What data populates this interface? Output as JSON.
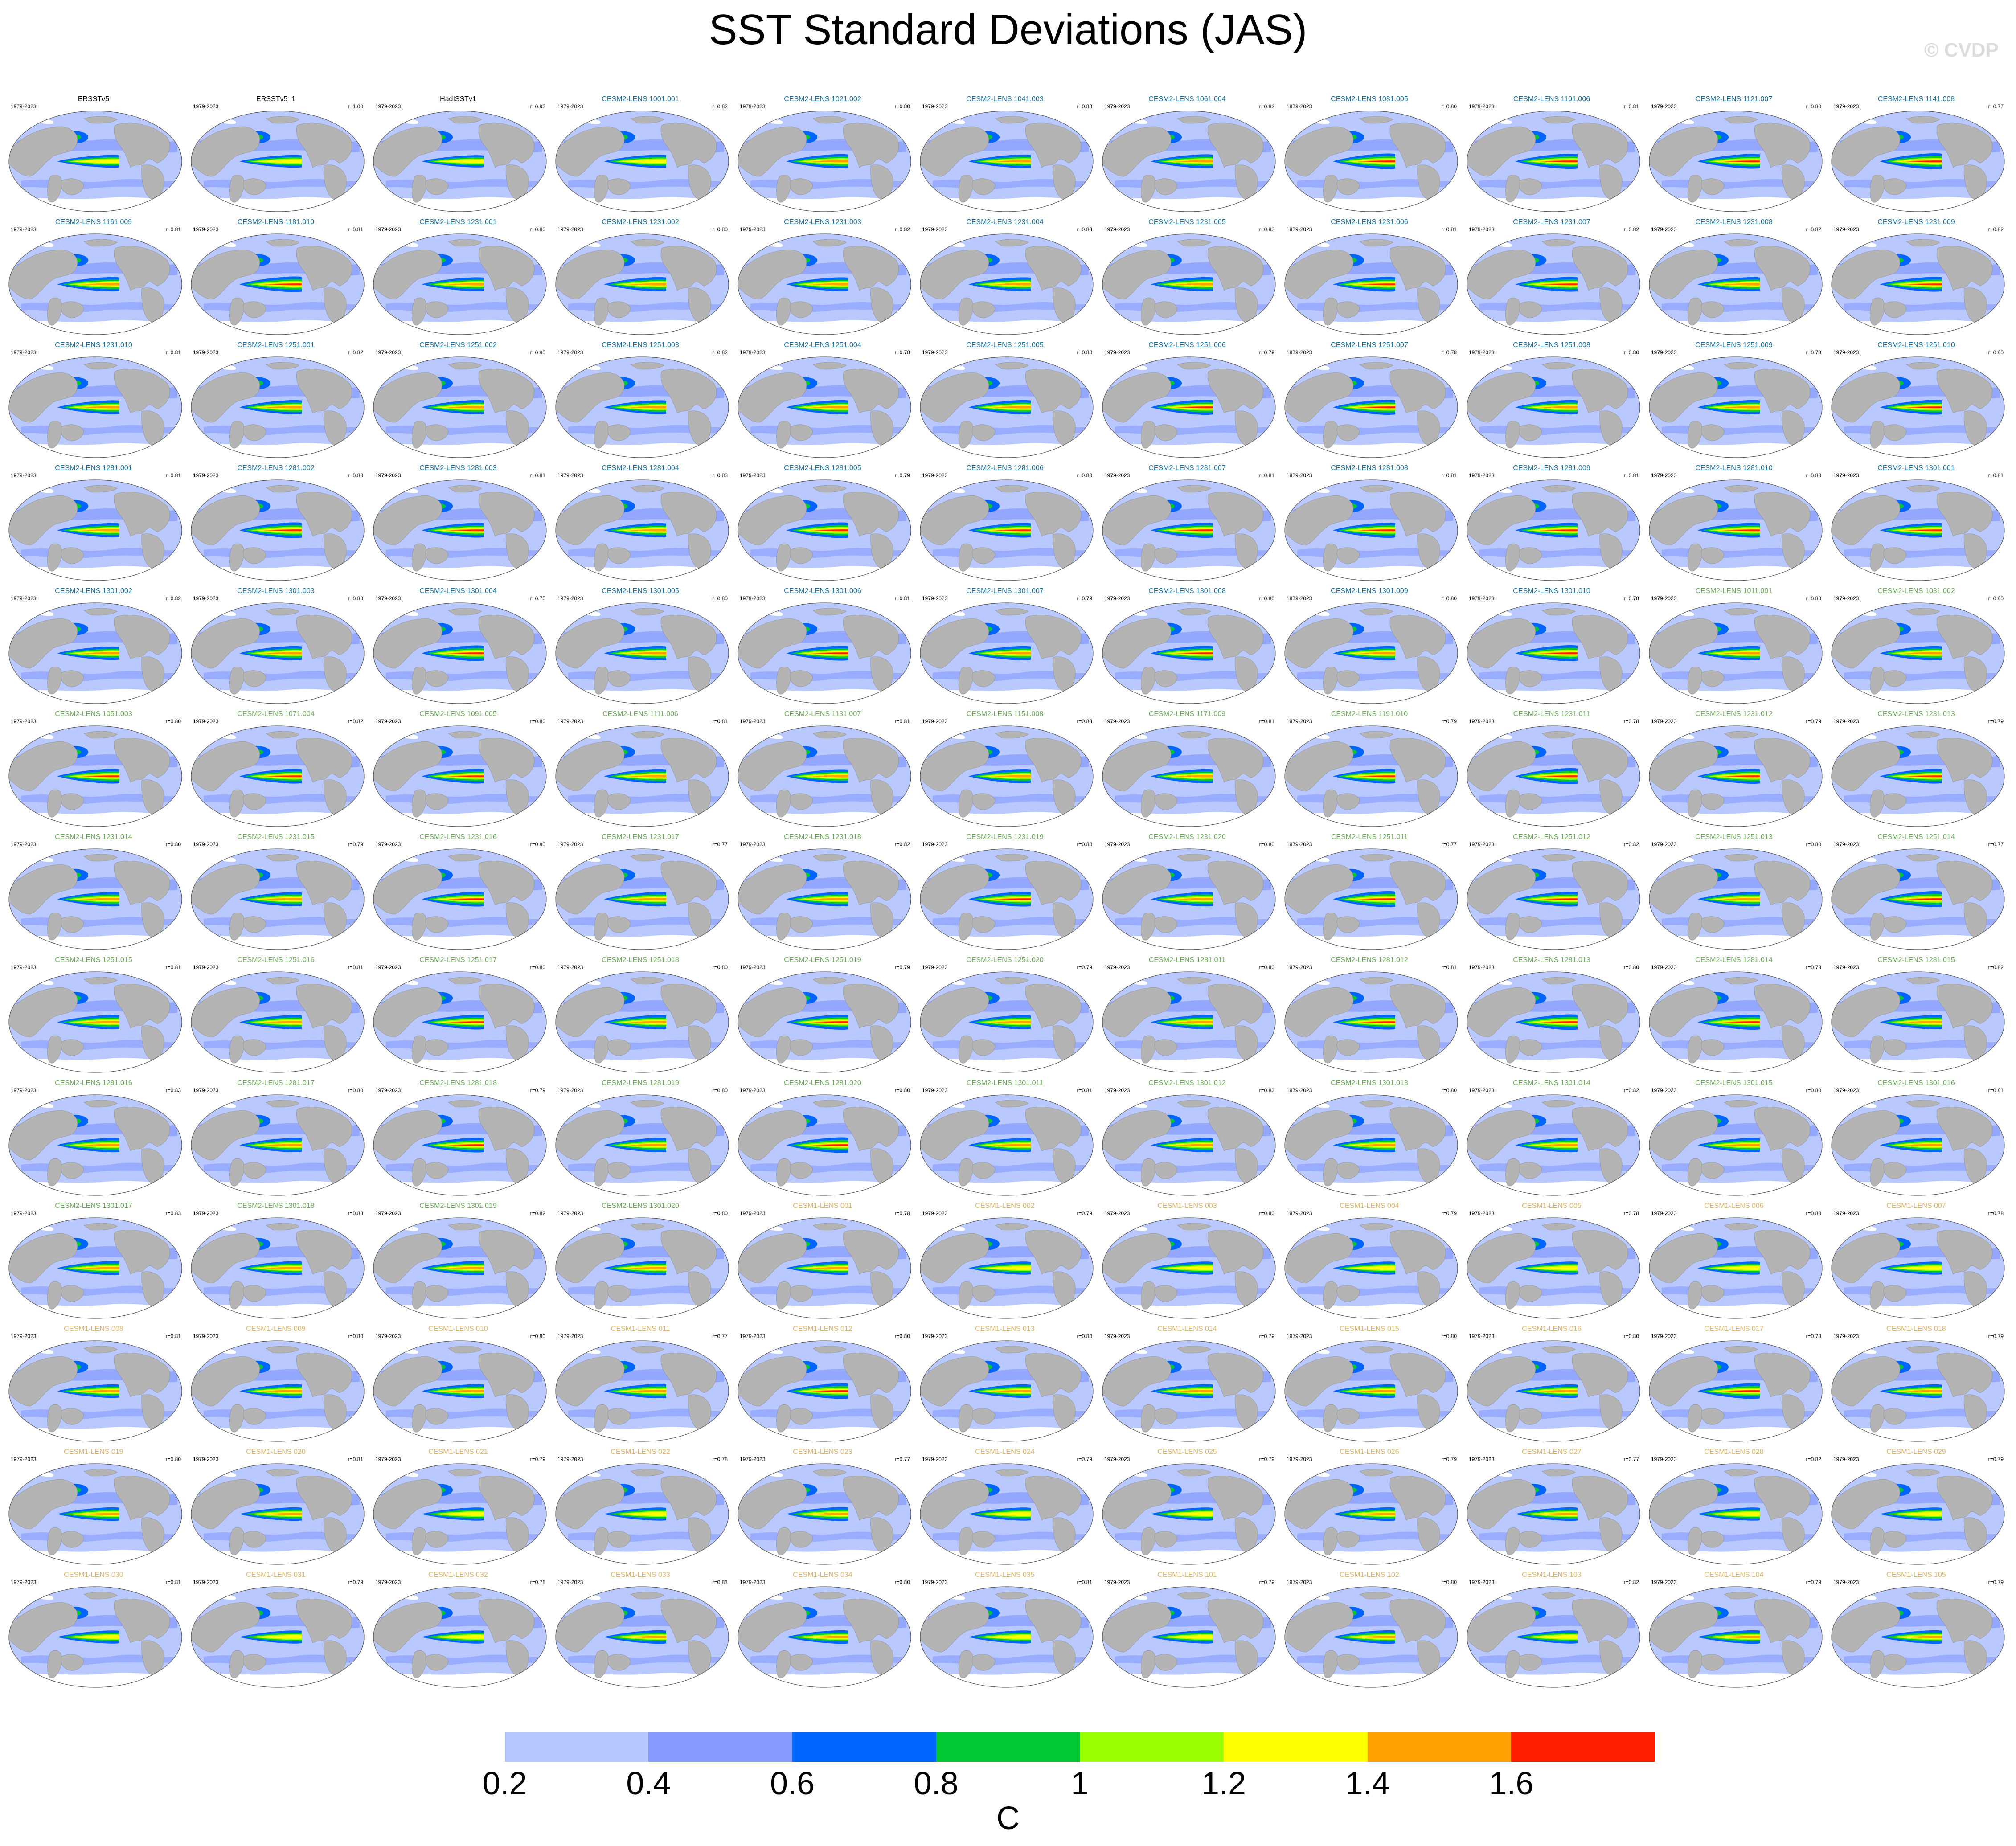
{
  "title": "SST Standard Deviations (JAS)",
  "watermark": "© CVDP",
  "panel_years": "1979-2023",
  "panels": [
    {
      "name": "ERSSTv5",
      "r": "",
      "amp": 0.55,
      "group": "obs"
    },
    {
      "name": "ERSSTv5_1",
      "r": "r=1.00",
      "amp": 0.55,
      "group": "obs"
    },
    {
      "name": "HadISSTv1",
      "r": "r=0.93",
      "amp": 0.5,
      "group": "obs"
    },
    {
      "name": "CESM2-LENS 1001.001",
      "r": "r=0.82",
      "amp": 0.6,
      "group": "cesm2"
    },
    {
      "name": "CESM2-LENS 1021.002",
      "r": "r=0.80",
      "amp": 0.75,
      "group": "cesm2"
    },
    {
      "name": "CESM2-LENS 1041.003",
      "r": "r=0.83",
      "amp": 0.65,
      "group": "cesm2"
    },
    {
      "name": "CESM2-LENS 1061.004",
      "r": "r=0.82",
      "amp": 0.7,
      "group": "cesm2"
    },
    {
      "name": "CESM2-LENS 1081.005",
      "r": "r=0.80",
      "amp": 0.9,
      "group": "cesm2"
    },
    {
      "name": "CESM2-LENS 1101.006",
      "r": "r=0.81",
      "amp": 0.85,
      "group": "cesm2"
    },
    {
      "name": "CESM2-LENS 1121.007",
      "r": "r=0.80",
      "amp": 0.8,
      "group": "cesm2"
    },
    {
      "name": "CESM2-LENS 1141.008",
      "r": "r=0.77",
      "amp": 0.95,
      "group": "cesm2"
    },
    {
      "name": "CESM2-LENS 1161.009",
      "r": "r=0.81",
      "amp": 0.75,
      "group": "cesm2"
    },
    {
      "name": "CESM2-LENS 1181.010",
      "r": "r=0.81",
      "amp": 0.9,
      "group": "cesm2"
    },
    {
      "name": "CESM2-LENS 1231.001",
      "r": "r=0.80",
      "amp": 0.7,
      "group": "cesm2"
    },
    {
      "name": "CESM2-LENS 1231.002",
      "r": "r=0.80",
      "amp": 0.75,
      "group": "cesm2"
    },
    {
      "name": "CESM2-LENS 1231.003",
      "r": "r=0.82",
      "amp": 0.7,
      "group": "cesm2"
    },
    {
      "name": "CESM2-LENS 1231.004",
      "r": "r=0.83",
      "amp": 0.7,
      "group": "cesm2"
    },
    {
      "name": "CESM2-LENS 1231.005",
      "r": "r=0.83",
      "amp": 0.75,
      "group": "cesm2"
    },
    {
      "name": "CESM2-LENS 1231.006",
      "r": "r=0.81",
      "amp": 0.8,
      "group": "cesm2"
    },
    {
      "name": "CESM2-LENS 1231.007",
      "r": "r=0.82",
      "amp": 0.8,
      "group": "cesm2"
    },
    {
      "name": "CESM2-LENS 1231.008",
      "r": "r=0.82",
      "amp": 0.75,
      "group": "cesm2"
    },
    {
      "name": "CESM2-LENS 1231.009",
      "r": "r=0.82",
      "amp": 0.8,
      "group": "cesm2"
    },
    {
      "name": "CESM2-LENS 1231.010",
      "r": "r=0.81",
      "amp": 0.7,
      "group": "cesm2"
    },
    {
      "name": "CESM2-LENS 1251.001",
      "r": "r=0.82",
      "amp": 0.75,
      "group": "cesm2"
    },
    {
      "name": "CESM2-LENS 1251.002",
      "r": "r=0.80",
      "amp": 0.75,
      "group": "cesm2"
    },
    {
      "name": "CESM2-LENS 1251.003",
      "r": "r=0.82",
      "amp": 0.7,
      "group": "cesm2"
    },
    {
      "name": "CESM2-LENS 1251.004",
      "r": "r=0.78",
      "amp": 0.75,
      "group": "cesm2"
    },
    {
      "name": "CESM2-LENS 1251.005",
      "r": "r=0.80",
      "amp": 0.75,
      "group": "cesm2"
    },
    {
      "name": "CESM2-LENS 1251.006",
      "r": "r=0.79",
      "amp": 0.85,
      "group": "cesm2"
    },
    {
      "name": "CESM2-LENS 1251.007",
      "r": "r=0.78",
      "amp": 0.85,
      "group": "cesm2"
    },
    {
      "name": "CESM2-LENS 1251.008",
      "r": "r=0.80",
      "amp": 0.75,
      "group": "cesm2"
    },
    {
      "name": "CESM2-LENS 1251.009",
      "r": "r=0.78",
      "amp": 0.75,
      "group": "cesm2"
    },
    {
      "name": "CESM2-LENS 1251.010",
      "r": "r=0.80",
      "amp": 0.8,
      "group": "cesm2"
    },
    {
      "name": "CESM2-LENS 1281.001",
      "r": "r=0.81",
      "amp": 0.75,
      "group": "cesm2"
    },
    {
      "name": "CESM2-LENS 1281.002",
      "r": "r=0.80",
      "amp": 0.9,
      "group": "cesm2"
    },
    {
      "name": "CESM2-LENS 1281.003",
      "r": "r=0.81",
      "amp": 0.8,
      "group": "cesm2"
    },
    {
      "name": "CESM2-LENS 1281.004",
      "r": "r=0.83",
      "amp": 0.75,
      "group": "cesm2"
    },
    {
      "name": "CESM2-LENS 1281.005",
      "r": "r=0.79",
      "amp": 0.9,
      "group": "cesm2"
    },
    {
      "name": "CESM2-LENS 1281.006",
      "r": "r=0.80",
      "amp": 0.8,
      "group": "cesm2"
    },
    {
      "name": "CESM2-LENS 1281.007",
      "r": "r=0.81",
      "amp": 0.85,
      "group": "cesm2"
    },
    {
      "name": "CESM2-LENS 1281.008",
      "r": "r=0.81",
      "amp": 0.85,
      "group": "cesm2"
    },
    {
      "name": "CESM2-LENS 1281.009",
      "r": "r=0.81",
      "amp": 0.8,
      "group": "cesm2"
    },
    {
      "name": "CESM2-LENS 1281.010",
      "r": "r=0.80",
      "amp": 0.8,
      "group": "cesm2"
    },
    {
      "name": "CESM2-LENS 1301.001",
      "r": "r=0.81",
      "amp": 0.8,
      "group": "cesm2"
    },
    {
      "name": "CESM2-LENS 1301.002",
      "r": "r=0.82",
      "amp": 0.65,
      "group": "cesm2"
    },
    {
      "name": "CESM2-LENS 1301.003",
      "r": "r=0.83",
      "amp": 0.75,
      "group": "cesm2"
    },
    {
      "name": "CESM2-LENS 1301.004",
      "r": "r=0.75",
      "amp": 0.9,
      "group": "cesm2"
    },
    {
      "name": "CESM2-LENS 1301.005",
      "r": "r=0.80",
      "amp": 0.75,
      "group": "cesm2"
    },
    {
      "name": "CESM2-LENS 1301.006",
      "r": "r=0.81",
      "amp": 0.8,
      "group": "cesm2"
    },
    {
      "name": "CESM2-LENS 1301.007",
      "r": "r=0.79",
      "amp": 0.75,
      "group": "cesm2"
    },
    {
      "name": "CESM2-LENS 1301.008",
      "r": "r=0.80",
      "amp": 0.8,
      "group": "cesm2"
    },
    {
      "name": "CESM2-LENS 1301.009",
      "r": "r=0.80",
      "amp": 0.75,
      "group": "cesm2"
    },
    {
      "name": "CESM2-LENS 1301.010",
      "r": "r=0.78",
      "amp": 0.95,
      "group": "cesm2"
    },
    {
      "name": "CESM2-LENS 1011.001",
      "r": "r=0.83",
      "amp": 0.75,
      "group": "cesm2b"
    },
    {
      "name": "CESM2-LENS 1031.002",
      "r": "r=0.80",
      "amp": 0.75,
      "group": "cesm2b"
    },
    {
      "name": "CESM2-LENS 1051.003",
      "r": "r=0.80",
      "amp": 0.8,
      "group": "cesm2b"
    },
    {
      "name": "CESM2-LENS 1071.004",
      "r": "r=0.82",
      "amp": 0.8,
      "group": "cesm2b"
    },
    {
      "name": "CESM2-LENS 1091.005",
      "r": "r=0.80",
      "amp": 0.8,
      "group": "cesm2b"
    },
    {
      "name": "CESM2-LENS 1111.006",
      "r": "r=0.81",
      "amp": 0.75,
      "group": "cesm2b"
    },
    {
      "name": "CESM2-LENS 1131.007",
      "r": "r=0.81",
      "amp": 0.7,
      "group": "cesm2b"
    },
    {
      "name": "CESM2-LENS 1151.008",
      "r": "r=0.83",
      "amp": 0.75,
      "group": "cesm2b"
    },
    {
      "name": "CESM2-LENS 1171.009",
      "r": "r=0.81",
      "amp": 0.75,
      "group": "cesm2b"
    },
    {
      "name": "CESM2-LENS 1191.010",
      "r": "r=0.79",
      "amp": 0.8,
      "group": "cesm2b"
    },
    {
      "name": "CESM2-LENS 1231.011",
      "r": "r=0.78",
      "amp": 0.95,
      "group": "cesm2b"
    },
    {
      "name": "CESM2-LENS 1231.012",
      "r": "r=0.79",
      "amp": 0.85,
      "group": "cesm2b"
    },
    {
      "name": "CESM2-LENS 1231.013",
      "r": "r=0.79",
      "amp": 0.8,
      "group": "cesm2b"
    },
    {
      "name": "CESM2-LENS 1231.014",
      "r": "r=0.80",
      "amp": 0.75,
      "group": "cesm2b"
    },
    {
      "name": "CESM2-LENS 1231.015",
      "r": "r=0.79",
      "amp": 0.75,
      "group": "cesm2b"
    },
    {
      "name": "CESM2-LENS 1231.016",
      "r": "r=0.80",
      "amp": 0.8,
      "group": "cesm2b"
    },
    {
      "name": "CESM2-LENS 1231.017",
      "r": "r=0.77",
      "amp": 0.75,
      "group": "cesm2b"
    },
    {
      "name": "CESM2-LENS 1231.018",
      "r": "r=0.82",
      "amp": 0.75,
      "group": "cesm2b"
    },
    {
      "name": "CESM2-LENS 1231.019",
      "r": "r=0.80",
      "amp": 0.8,
      "group": "cesm2b"
    },
    {
      "name": "CESM2-LENS 1231.020",
      "r": "r=0.80",
      "amp": 0.75,
      "group": "cesm2b"
    },
    {
      "name": "CESM2-LENS 1251.011",
      "r": "r=0.77",
      "amp": 0.95,
      "group": "cesm2b"
    },
    {
      "name": "CESM2-LENS 1251.012",
      "r": "r=0.82",
      "amp": 0.8,
      "group": "cesm2b"
    },
    {
      "name": "CESM2-LENS 1251.013",
      "r": "r=0.80",
      "amp": 0.75,
      "group": "cesm2b"
    },
    {
      "name": "CESM2-LENS 1251.014",
      "r": "r=0.77",
      "amp": 0.95,
      "group": "cesm2b"
    },
    {
      "name": "CESM2-LENS 1251.015",
      "r": "r=0.81",
      "amp": 0.75,
      "group": "cesm2b"
    },
    {
      "name": "CESM2-LENS 1251.016",
      "r": "r=0.81",
      "amp": 0.75,
      "group": "cesm2b"
    },
    {
      "name": "CESM2-LENS 1251.017",
      "r": "r=0.80",
      "amp": 0.8,
      "group": "cesm2b"
    },
    {
      "name": "CESM2-LENS 1251.018",
      "r": "r=0.80",
      "amp": 0.75,
      "group": "cesm2b"
    },
    {
      "name": "CESM2-LENS 1251.019",
      "r": "r=0.79",
      "amp": 0.85,
      "group": "cesm2b"
    },
    {
      "name": "CESM2-LENS 1251.020",
      "r": "r=0.79",
      "amp": 0.75,
      "group": "cesm2b"
    },
    {
      "name": "CESM2-LENS 1281.011",
      "r": "r=0.80",
      "amp": 0.75,
      "group": "cesm2b"
    },
    {
      "name": "CESM2-LENS 1281.012",
      "r": "r=0.81",
      "amp": 0.8,
      "group": "cesm2b"
    },
    {
      "name": "CESM2-LENS 1281.013",
      "r": "r=0.80",
      "amp": 0.9,
      "group": "cesm2b"
    },
    {
      "name": "CESM2-LENS 1281.014",
      "r": "r=0.78",
      "amp": 0.85,
      "group": "cesm2b"
    },
    {
      "name": "CESM2-LENS 1281.015",
      "r": "r=0.82",
      "amp": 0.75,
      "group": "cesm2b"
    },
    {
      "name": "CESM2-LENS 1281.016",
      "r": "r=0.83",
      "amp": 0.75,
      "group": "cesm2b"
    },
    {
      "name": "CESM2-LENS 1281.017",
      "r": "r=0.80",
      "amp": 0.75,
      "group": "cesm2b"
    },
    {
      "name": "CESM2-LENS 1281.018",
      "r": "r=0.79",
      "amp": 0.8,
      "group": "cesm2b"
    },
    {
      "name": "CESM2-LENS 1281.019",
      "r": "r=0.80",
      "amp": 0.75,
      "group": "cesm2b"
    },
    {
      "name": "CESM2-LENS 1281.020",
      "r": "r=0.80",
      "amp": 0.9,
      "group": "cesm2b"
    },
    {
      "name": "CESM2-LENS 1301.011",
      "r": "r=0.81",
      "amp": 0.75,
      "group": "cesm2b"
    },
    {
      "name": "CESM2-LENS 1301.012",
      "r": "r=0.83",
      "amp": 0.75,
      "group": "cesm2b"
    },
    {
      "name": "CESM2-LENS 1301.013",
      "r": "r=0.80",
      "amp": 0.75,
      "group": "cesm2b"
    },
    {
      "name": "CESM2-LENS 1301.014",
      "r": "r=0.82",
      "amp": 0.75,
      "group": "cesm2b"
    },
    {
      "name": "CESM2-LENS 1301.015",
      "r": "r=0.80",
      "amp": 0.75,
      "group": "cesm2b"
    },
    {
      "name": "CESM2-LENS 1301.016",
      "r": "r=0.81",
      "amp": 0.75,
      "group": "cesm2b"
    },
    {
      "name": "CESM2-LENS 1301.017",
      "r": "r=0.83",
      "amp": 0.7,
      "group": "cesm2b"
    },
    {
      "name": "CESM2-LENS 1301.018",
      "r": "r=0.83",
      "amp": 0.7,
      "group": "cesm2b"
    },
    {
      "name": "CESM2-LENS 1301.019",
      "r": "r=0.82",
      "amp": 0.75,
      "group": "cesm2b"
    },
    {
      "name": "CESM2-LENS 1301.020",
      "r": "r=0.80",
      "amp": 0.75,
      "group": "cesm2b"
    },
    {
      "name": "CESM1-LENS 001",
      "r": "r=0.78",
      "amp": 0.65,
      "group": "cesm1"
    },
    {
      "name": "CESM1-LENS 002",
      "r": "r=0.79",
      "amp": 0.6,
      "group": "cesm1"
    },
    {
      "name": "CESM1-LENS 003",
      "r": "r=0.80",
      "amp": 0.6,
      "group": "cesm1"
    },
    {
      "name": "CESM1-LENS 004",
      "r": "r=0.79",
      "amp": 0.6,
      "group": "cesm1"
    },
    {
      "name": "CESM1-LENS 005",
      "r": "r=0.78",
      "amp": 0.6,
      "group": "cesm1"
    },
    {
      "name": "CESM1-LENS 006",
      "r": "r=0.80",
      "amp": 0.6,
      "group": "cesm1"
    },
    {
      "name": "CESM1-LENS 007",
      "r": "r=0.78",
      "amp": 0.6,
      "group": "cesm1"
    },
    {
      "name": "CESM1-LENS 008",
      "r": "r=0.81",
      "amp": 0.65,
      "group": "cesm1"
    },
    {
      "name": "CESM1-LENS 009",
      "r": "r=0.80",
      "amp": 0.7,
      "group": "cesm1"
    },
    {
      "name": "CESM1-LENS 010",
      "r": "r=0.80",
      "amp": 0.7,
      "group": "cesm1"
    },
    {
      "name": "CESM1-LENS 011",
      "r": "r=0.77",
      "amp": 0.75,
      "group": "cesm1"
    },
    {
      "name": "CESM1-LENS 012",
      "r": "r=0.80",
      "amp": 0.9,
      "group": "cesm1"
    },
    {
      "name": "CESM1-LENS 013",
      "r": "r=0.80",
      "amp": 0.65,
      "group": "cesm1"
    },
    {
      "name": "CESM1-LENS 014",
      "r": "r=0.79",
      "amp": 0.7,
      "group": "cesm1"
    },
    {
      "name": "CESM1-LENS 015",
      "r": "r=0.80",
      "amp": 0.65,
      "group": "cesm1"
    },
    {
      "name": "CESM1-LENS 016",
      "r": "r=0.80",
      "amp": 0.65,
      "group": "cesm1"
    },
    {
      "name": "CESM1-LENS 017",
      "r": "r=0.78",
      "amp": 0.9,
      "group": "cesm1"
    },
    {
      "name": "CESM1-LENS 018",
      "r": "r=0.79",
      "amp": 0.65,
      "group": "cesm1"
    },
    {
      "name": "CESM1-LENS 019",
      "r": "r=0.80",
      "amp": 0.65,
      "group": "cesm1"
    },
    {
      "name": "CESM1-LENS 020",
      "r": "r=0.81",
      "amp": 0.65,
      "group": "cesm1"
    },
    {
      "name": "CESM1-LENS 021",
      "r": "r=0.79",
      "amp": 0.6,
      "group": "cesm1"
    },
    {
      "name": "CESM1-LENS 022",
      "r": "r=0.78",
      "amp": 0.6,
      "group": "cesm1"
    },
    {
      "name": "CESM1-LENS 023",
      "r": "r=0.77",
      "amp": 0.7,
      "group": "cesm1"
    },
    {
      "name": "CESM1-LENS 024",
      "r": "r=0.79",
      "amp": 0.6,
      "group": "cesm1"
    },
    {
      "name": "CESM1-LENS 025",
      "r": "r=0.79",
      "amp": 0.6,
      "group": "cesm1"
    },
    {
      "name": "CESM1-LENS 026",
      "r": "r=0.79",
      "amp": 0.65,
      "group": "cesm1"
    },
    {
      "name": "CESM1-LENS 027",
      "r": "r=0.77",
      "amp": 0.65,
      "group": "cesm1"
    },
    {
      "name": "CESM1-LENS 028",
      "r": "r=0.82",
      "amp": 0.6,
      "group": "cesm1"
    },
    {
      "name": "CESM1-LENS 029",
      "r": "r=0.79",
      "amp": 0.6,
      "group": "cesm1"
    },
    {
      "name": "CESM1-LENS 030",
      "r": "r=0.81",
      "amp": 0.6,
      "group": "cesm1"
    },
    {
      "name": "CESM1-LENS 031",
      "r": "r=0.79",
      "amp": 0.6,
      "group": "cesm1"
    },
    {
      "name": "CESM1-LENS 032",
      "r": "r=0.78",
      "amp": 0.6,
      "group": "cesm1"
    },
    {
      "name": "CESM1-LENS 033",
      "r": "r=0.81",
      "amp": 0.65,
      "group": "cesm1"
    },
    {
      "name": "CESM1-LENS 034",
      "r": "r=0.80",
      "amp": 0.65,
      "group": "cesm1"
    },
    {
      "name": "CESM1-LENS 035",
      "r": "r=0.81",
      "amp": 0.6,
      "group": "cesm1"
    },
    {
      "name": "CESM1-LENS 101",
      "r": "r=0.79",
      "amp": 0.6,
      "group": "cesm1"
    },
    {
      "name": "CESM1-LENS 102",
      "r": "r=0.80",
      "amp": 0.65,
      "group": "cesm1"
    },
    {
      "name": "CESM1-LENS 103",
      "r": "r=0.82",
      "amp": 0.6,
      "group": "cesm1"
    },
    {
      "name": "CESM1-LENS 104",
      "r": "r=0.79",
      "amp": 0.65,
      "group": "cesm1"
    },
    {
      "name": "CESM1-LENS 105",
      "r": "r=0.79",
      "amp": 0.65,
      "group": "cesm1"
    }
  ],
  "name_colors": {
    "obs": "#000000",
    "cesm2": "#1a6e9a",
    "cesm2b": "#6aa55a",
    "cesm1": "#d9b36a"
  },
  "map_colors": {
    "land": "#b4b4b4",
    "ocean": "#b9c9ff",
    "ocean_mid": "#8599ff",
    "ice": "#ffffff",
    "outline": "#555555"
  },
  "chart_data": {
    "type": "heatmap",
    "title": "SST Standard Deviations (JAS)",
    "layout_grid": {
      "rows": 13,
      "cols": 11
    },
    "colorbar": {
      "unit": "C",
      "levels": [
        0.2,
        0.4,
        0.6,
        0.8,
        1,
        1.2,
        1.4,
        1.6
      ],
      "tick_labels": [
        "0.2",
        "0.4",
        "0.6",
        "0.8",
        "1",
        "1.2",
        "1.4",
        "1.6"
      ],
      "colors": [
        "#ffffff",
        "#b4c8ff",
        "#8599ff",
        "#0064ff",
        "#00c832",
        "#96ff00",
        "#ffff00",
        "#ffa000",
        "#ff1e00"
      ]
    }
  }
}
